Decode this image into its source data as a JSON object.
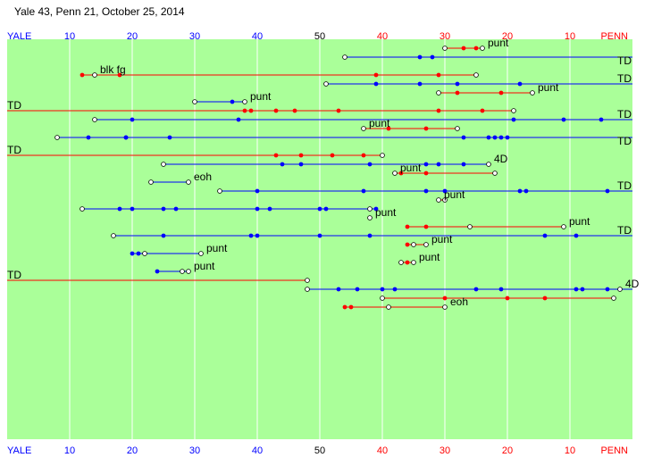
{
  "title": "Yale 43, Penn 21, October 25, 2014",
  "chart_data": {
    "type": "line",
    "title": "Yale 43, Penn 21, October 25, 2014",
    "x_unit": "yards from Yale goal line (0 = Yale goal, 100 = Penn goal)",
    "xlim": [
      0,
      100
    ],
    "axis": {
      "top": [
        "YALE",
        "10",
        "20",
        "30",
        "40",
        "50",
        "40",
        "30",
        "20",
        "10",
        "PENN"
      ],
      "bottom": [
        "YALE",
        "10",
        "20",
        "30",
        "40",
        "50",
        "40",
        "30",
        "20",
        "10",
        "PENN"
      ],
      "home_color": "#0000ff",
      "away_color": "#ff0000"
    },
    "colors": {
      "field": "#aaff99",
      "field_lines": "#ffffff",
      "yale": "#0000ff",
      "penn": "#ff0000"
    },
    "drives": [
      {
        "team": "penn",
        "result": "punt",
        "points": [
          70,
          73,
          75,
          76
        ]
      },
      {
        "team": "yale",
        "result": "",
        "points": [
          54,
          68,
          66,
          100
        ]
      },
      {
        "team": "yale",
        "result": "TD",
        "points": [
          100
        ]
      },
      {
        "team": "penn",
        "result": "blk fg",
        "points": [
          75,
          69,
          59,
          18,
          12,
          14
        ]
      },
      {
        "team": "yale",
        "result": "TD",
        "points": [
          51,
          59,
          66,
          72,
          82,
          100
        ]
      },
      {
        "team": "penn",
        "result": "punt",
        "points": [
          69,
          72,
          79,
          84
        ]
      },
      {
        "team": "yale",
        "result": "punt",
        "points": [
          30,
          36,
          38
        ]
      },
      {
        "team": "penn",
        "result": "TD",
        "points": [
          81,
          76,
          69,
          53,
          46,
          43,
          39,
          38,
          0
        ]
      },
      {
        "team": "yale",
        "result": "TD",
        "points": [
          14,
          20,
          37,
          81,
          89,
          95,
          100
        ]
      },
      {
        "team": "penn",
        "result": "punt",
        "points": [
          72,
          67,
          61,
          57
        ]
      },
      {
        "team": "yale",
        "result": "",
        "points": [
          8,
          13,
          19,
          26,
          19,
          79,
          80,
          78,
          77,
          73,
          100
        ]
      },
      {
        "team": "yale",
        "result": "TD",
        "points": [
          100
        ]
      },
      {
        "team": "penn",
        "result": "TD",
        "points": [
          60,
          57,
          52,
          47,
          43,
          0
        ]
      },
      {
        "team": "yale",
        "result": "4D",
        "points": [
          25,
          44,
          47,
          58,
          69,
          67,
          73,
          77
        ]
      },
      {
        "team": "penn",
        "result": "punt",
        "points": [
          78,
          67,
          63,
          62
        ]
      },
      {
        "team": "yale",
        "result": "eoh",
        "points": [
          23,
          29
        ]
      },
      {
        "team": "yale",
        "result": "TD",
        "points": [
          34,
          40,
          57,
          67,
          70,
          82,
          83,
          96,
          100
        ]
      },
      {
        "team": "penn",
        "result": "punt",
        "points": [
          70,
          69
        ]
      },
      {
        "team": "yale",
        "result": "",
        "points": [
          12,
          18,
          20,
          25,
          27,
          51,
          42,
          50,
          40,
          59,
          58
        ]
      },
      {
        "team": "yale",
        "result": "punt",
        "points": [
          58
        ]
      },
      {
        "team": "penn",
        "result": "punt",
        "points": [
          74,
          67,
          64,
          89
        ]
      },
      {
        "team": "yale",
        "result": "TD",
        "points": [
          17,
          25,
          39,
          40,
          50,
          58,
          86,
          91,
          100
        ]
      },
      {
        "team": "penn",
        "result": "punt",
        "points": [
          65,
          64,
          67
        ]
      },
      {
        "team": "yale",
        "result": "punt",
        "points": [
          22,
          20,
          21,
          31
        ]
      },
      {
        "team": "penn",
        "result": "punt",
        "points": [
          63,
          64,
          65
        ]
      },
      {
        "team": "yale",
        "result": "punt",
        "points": [
          28,
          29,
          24,
          29
        ]
      },
      {
        "team": "penn",
        "result": "TD",
        "points": [
          48,
          0
        ]
      },
      {
        "team": "yale",
        "result": "4D",
        "points": [
          48,
          53,
          56,
          60,
          62,
          75,
          79,
          91,
          92,
          96,
          98,
          100,
          98
        ]
      },
      {
        "team": "penn",
        "result": "",
        "points": [
          60,
          70,
          80,
          86,
          97
        ]
      },
      {
        "team": "penn",
        "result": "eoh",
        "points": [
          61,
          55,
          54,
          70
        ]
      }
    ]
  }
}
